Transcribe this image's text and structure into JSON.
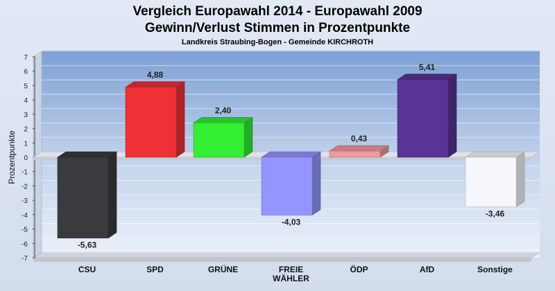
{
  "chart_data": {
    "type": "bar",
    "title": "Vergleich Europawahl 2014 - Europawahl 2009",
    "subtitle": "Gewinn/Verlust Stimmen in Prozentpunkte",
    "caption": "Landkreis Straubing-Bogen - Gemeinde KIRCHROTH",
    "ylabel": "Prozentpunkte",
    "xlabel": "",
    "ylim": [
      -7,
      7
    ],
    "yticks": [
      7,
      6,
      5,
      4,
      3,
      2,
      1,
      0,
      -1,
      -2,
      -3,
      -4,
      -5,
      -6,
      -7
    ],
    "grid": true,
    "categories": [
      [
        "CSU"
      ],
      [
        "SPD"
      ],
      [
        "GRÜNE"
      ],
      [
        "FREIE",
        "WÄHLER"
      ],
      [
        "ÖDP"
      ],
      [
        "AfD"
      ],
      [
        "Sonstige"
      ]
    ],
    "values": [
      -5.63,
      4.88,
      2.4,
      -4.03,
      0.43,
      5.41,
      -3.46
    ],
    "value_labels": [
      "-5,63",
      "4,88",
      "2,40",
      "-4,03",
      "0,43",
      "5,41",
      "-3,46"
    ],
    "colors": [
      "#3a3b3f",
      "#ef3037",
      "#33ee33",
      "#9595ff",
      "#f09aa0",
      "#5a3396",
      "#f5f7fb"
    ]
  }
}
